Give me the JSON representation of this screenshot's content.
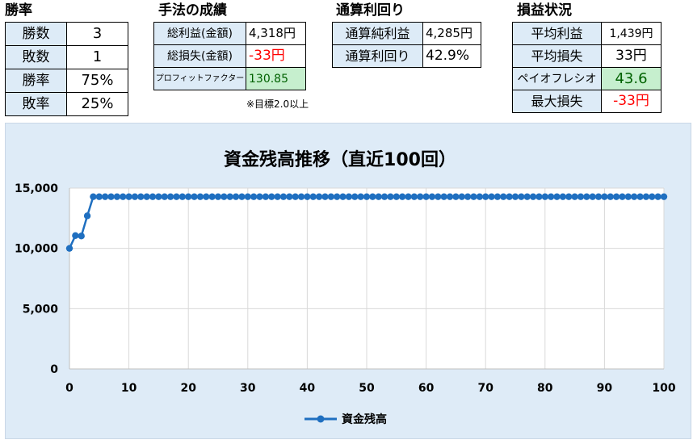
{
  "winrate": {
    "title": "勝率",
    "rows": [
      {
        "label": "勝数",
        "value": "3"
      },
      {
        "label": "敗数",
        "value": "1"
      },
      {
        "label": "勝率",
        "value": "75%"
      },
      {
        "label": "敗率",
        "value": "25%"
      }
    ]
  },
  "method": {
    "title": "手法の成績",
    "rows": [
      {
        "label": "総利益(金額)",
        "value": "4,318円"
      },
      {
        "label": "総損失(金額)",
        "value": "-33円"
      },
      {
        "label": "プロフィットファクター",
        "value": "130.85"
      }
    ],
    "note": "※目標2.0以上"
  },
  "total": {
    "title": "通算利回り",
    "rows": [
      {
        "label": "通算純利益",
        "value": "4,285円"
      },
      {
        "label": "通算利回り",
        "value": "42.9%"
      }
    ]
  },
  "pnl": {
    "title": "損益状況",
    "rows": [
      {
        "label": "平均利益",
        "value": "1,439円"
      },
      {
        "label": "平均損失",
        "value": "33円"
      },
      {
        "label": "ペイオフレシオ",
        "value": "43.6"
      },
      {
        "label": "最大損失",
        "value": "-33円"
      }
    ]
  },
  "colors": {
    "header_fill": "#ddebf7",
    "good_fill": "#c6efce",
    "good_text": "#006100",
    "negative_text": "#ff0000",
    "chart_bg": "#deebf7",
    "series": "#1f6fc0"
  },
  "chart_data": {
    "type": "line",
    "title": "資金残高推移（直近100回）",
    "series": [
      {
        "name": "資金残高",
        "x": [
          0,
          1,
          2,
          3,
          4,
          5,
          6,
          7,
          8,
          9,
          10,
          11,
          12,
          13,
          14,
          15,
          16,
          17,
          18,
          19,
          20,
          21,
          22,
          23,
          24,
          25,
          26,
          27,
          28,
          29,
          30,
          31,
          32,
          33,
          34,
          35,
          36,
          37,
          38,
          39,
          40,
          41,
          42,
          43,
          44,
          45,
          46,
          47,
          48,
          49,
          50,
          51,
          52,
          53,
          54,
          55,
          56,
          57,
          58,
          59,
          60,
          61,
          62,
          63,
          64,
          65,
          66,
          67,
          68,
          69,
          70,
          71,
          72,
          73,
          74,
          75,
          76,
          77,
          78,
          79,
          80,
          81,
          82,
          83,
          84,
          85,
          86,
          87,
          88,
          89,
          90,
          91,
          92,
          93,
          94,
          95,
          96,
          97,
          98,
          99,
          100
        ],
        "values": [
          10000,
          11060,
          11027,
          12700,
          14285,
          14285,
          14285,
          14285,
          14285,
          14285,
          14285,
          14285,
          14285,
          14285,
          14285,
          14285,
          14285,
          14285,
          14285,
          14285,
          14285,
          14285,
          14285,
          14285,
          14285,
          14285,
          14285,
          14285,
          14285,
          14285,
          14285,
          14285,
          14285,
          14285,
          14285,
          14285,
          14285,
          14285,
          14285,
          14285,
          14285,
          14285,
          14285,
          14285,
          14285,
          14285,
          14285,
          14285,
          14285,
          14285,
          14285,
          14285,
          14285,
          14285,
          14285,
          14285,
          14285,
          14285,
          14285,
          14285,
          14285,
          14285,
          14285,
          14285,
          14285,
          14285,
          14285,
          14285,
          14285,
          14285,
          14285,
          14285,
          14285,
          14285,
          14285,
          14285,
          14285,
          14285,
          14285,
          14285,
          14285,
          14285,
          14285,
          14285,
          14285,
          14285,
          14285,
          14285,
          14285,
          14285,
          14285,
          14285,
          14285,
          14285,
          14285,
          14285,
          14285,
          14285,
          14285,
          14285,
          14285
        ]
      }
    ],
    "x_ticks": [
      "0",
      "10",
      "20",
      "30",
      "40",
      "50",
      "60",
      "70",
      "80",
      "90",
      "100"
    ],
    "y_ticks": [
      "0",
      "5,000",
      "10,000",
      "15,000"
    ],
    "xlim": [
      0,
      100
    ],
    "ylim": [
      0,
      15000
    ],
    "grid": "vertical and horizontal",
    "legend_position": "bottom"
  }
}
